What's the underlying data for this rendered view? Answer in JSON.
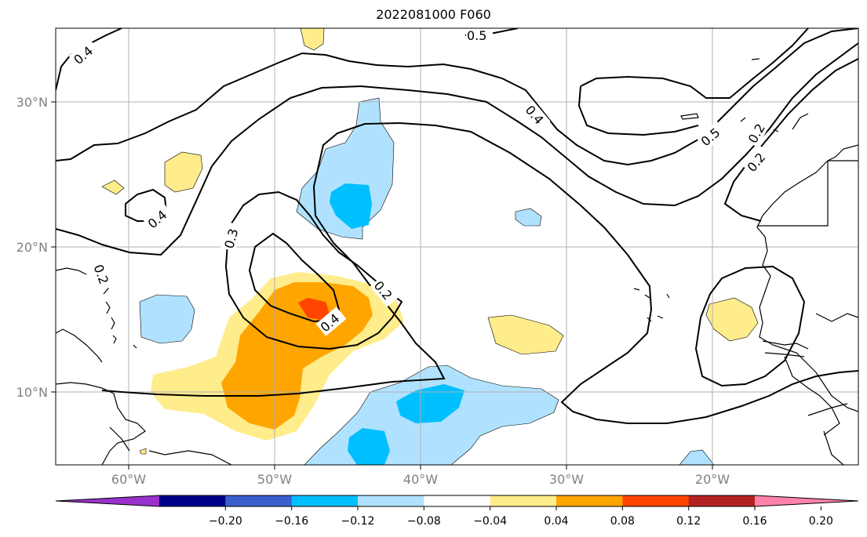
{
  "title": "2022081000 F060",
  "lon_ticks": [
    "60°W",
    "50°W",
    "40°W",
    "30°W",
    "20°W"
  ],
  "lat_ticks": [
    "30°N",
    "20°N",
    "10°N"
  ],
  "contour_labels": [
    "0.5",
    "0.4",
    "0.4",
    "0.5",
    "0.2",
    "0.2",
    "0.4",
    "0.3",
    "0.2",
    "0.4",
    "0.2"
  ],
  "colorbar": {
    "colors": [
      "#9932cc",
      "#00008b",
      "#3a5fcd",
      "#00bfff",
      "#b0e2ff",
      "#ffffff",
      "#ffec8b",
      "#ffa500",
      "#ff4500",
      "#b22222",
      "#ff82ab"
    ],
    "tick_labels": [
      "−0.20",
      "−0.16",
      "−0.12",
      "−0.08",
      "−0.04",
      "0.04",
      "0.08",
      "0.12",
      "0.16",
      "0.20"
    ]
  },
  "colors": {
    "light_blue": "#b0e2ff",
    "blue": "#00bfff",
    "light_yellow": "#ffec8b",
    "orange": "#ffa500",
    "red_orange": "#ff4500",
    "grid": "#b0b0b0",
    "tick_text": "#808080"
  }
}
